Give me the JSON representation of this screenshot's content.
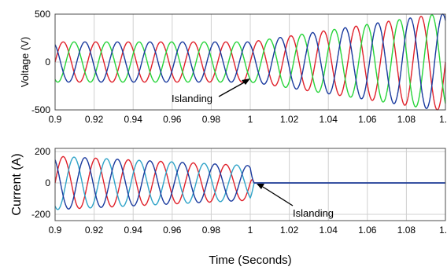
{
  "chart_data": [
    {
      "type": "line",
      "title": "",
      "xlabel": "",
      "ylabel": "Voltage (V)",
      "xlim": [
        0.9,
        1.1
      ],
      "ylim": [
        -500,
        500
      ],
      "xticks": [
        "0.9",
        "0.92",
        "0.94",
        "0.96",
        "0.98",
        "1",
        "1.02",
        "1.04",
        "1.06",
        "1.08",
        "1."
      ],
      "yticks": [
        "-500",
        "0",
        "500"
      ],
      "grid": true,
      "frequency_hz": 60,
      "series": [
        {
          "color": "#e0202a",
          "amplitude_before": 210,
          "amplitude_after": 500,
          "phase_deg": 0
        },
        {
          "color": "#27d43a",
          "amplitude_before": 210,
          "amplitude_after": 500,
          "phase_deg": -120
        },
        {
          "color": "#1a3a9e",
          "amplitude_before": 210,
          "amplitude_after": 500,
          "phase_deg": 120
        }
      ],
      "event_time": 1.0,
      "annotation": {
        "text": "Islanding",
        "x": 1.0,
        "y": -130
      }
    },
    {
      "type": "line",
      "title": "",
      "xlabel": "Time (Seconds)",
      "ylabel": "Current (A)",
      "xlim": [
        0.9,
        1.1
      ],
      "ylim": [
        -240,
        220
      ],
      "xticks": [
        "0.9",
        "0.92",
        "0.94",
        "0.96",
        "0.98",
        "1",
        "1.02",
        "1.04",
        "1.06",
        "1.08",
        "1."
      ],
      "yticks": [
        "-200",
        "0",
        "200"
      ],
      "grid": true,
      "frequency_hz": 60,
      "series": [
        {
          "color": "#e0202a",
          "amplitude_start": 170,
          "amplitude_end": 110,
          "phase_deg": 0
        },
        {
          "color": "#2fa3c8",
          "amplitude_start": 170,
          "amplitude_end": 110,
          "phase_deg": -120
        },
        {
          "color": "#1a3a9e",
          "amplitude_start": 170,
          "amplitude_end": 110,
          "phase_deg": 120
        }
      ],
      "after_event_value": 0,
      "event_time": 1.0,
      "annotation": {
        "text": "Islanding",
        "x": 1.003,
        "y": 0
      }
    }
  ]
}
